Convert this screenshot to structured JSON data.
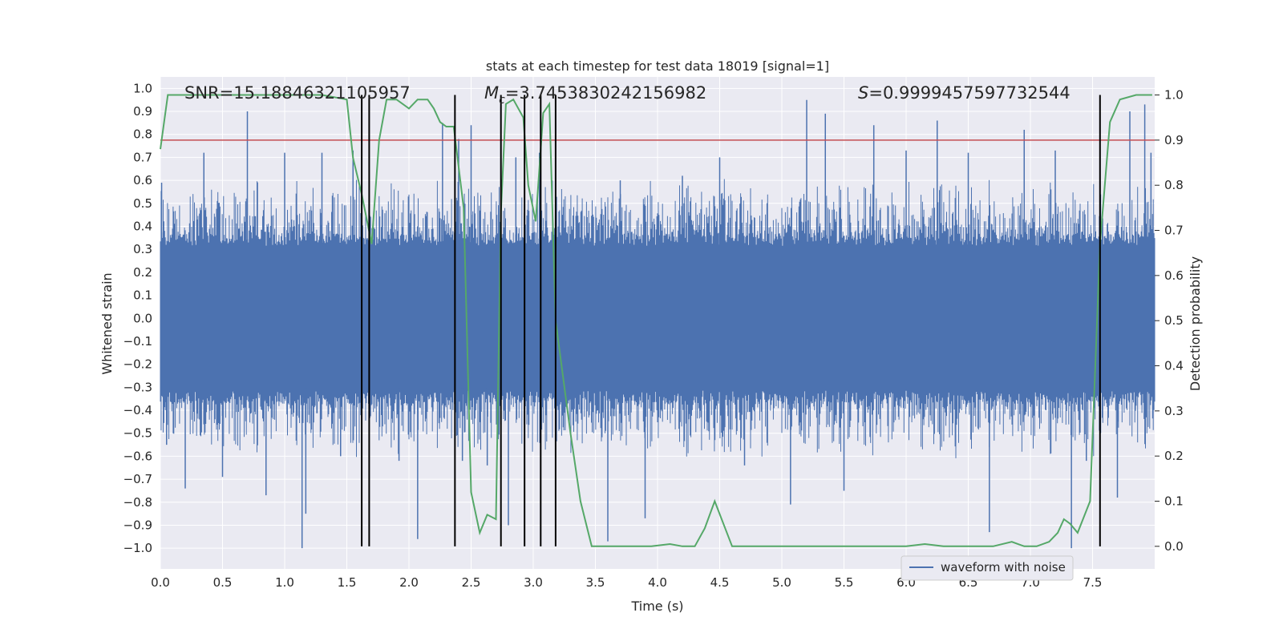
{
  "chart_data": {
    "type": "line",
    "title": "stats at each timestep for test data 18019 [signal=1]",
    "xlabel": "Time (s)",
    "ylabel_left": "Whitened strain",
    "ylabel_right": "Detection probability",
    "xlim": [
      0.0,
      8.0
    ],
    "ylim_left": [
      -1.09,
      1.05
    ],
    "ylim_right": [
      -0.05,
      1.04
    ],
    "x_ticks": [
      "0.0",
      "0.5",
      "1.0",
      "1.5",
      "2.0",
      "2.5",
      "3.0",
      "3.5",
      "4.0",
      "4.5",
      "5.0",
      "5.5",
      "6.0",
      "6.5",
      "7.0",
      "7.5"
    ],
    "y_ticks_left": [
      "1.0",
      "0.9",
      "0.8",
      "0.7",
      "0.6",
      "0.5",
      "0.4",
      "0.3",
      "0.2",
      "0.1",
      "0.0",
      "−0.1",
      "−0.2",
      "−0.3",
      "−0.4",
      "−0.5",
      "−0.6",
      "−0.7",
      "−0.8",
      "−0.9",
      "−1.0"
    ],
    "y_ticks_right": [
      "1.0",
      "0.9",
      "0.8",
      "0.7",
      "0.6",
      "0.5",
      "0.4",
      "0.3",
      "0.2",
      "0.1",
      "0.0"
    ],
    "annotations": {
      "snr": "SNR=15.18846321105957",
      "mc_symbol": "M",
      "mc_sub": "c",
      "mc_value": "=3.7453830242156982",
      "s_symbol": "S",
      "s_value": "=0.9999457597732544"
    },
    "threshold": {
      "value": 0.9,
      "axis": "right",
      "color": "#c44e52"
    },
    "event_lines_x": [
      1.62,
      1.68,
      2.37,
      2.74,
      2.93,
      3.06,
      3.18,
      7.56
    ],
    "series": [
      {
        "name": "waveform with noise",
        "color": "#4c72b0",
        "kind": "noisy strain",
        "core_amplitude": 0.37,
        "spikes": [
          {
            "x": 0.01,
            "y": 0.59
          },
          {
            "x": 0.05,
            "y": -0.55
          },
          {
            "x": 0.2,
            "y": -0.74
          },
          {
            "x": 0.35,
            "y": 0.72
          },
          {
            "x": 0.5,
            "y": -0.69
          },
          {
            "x": 0.7,
            "y": 0.9
          },
          {
            "x": 0.85,
            "y": -0.77
          },
          {
            "x": 1.0,
            "y": 0.72
          },
          {
            "x": 1.14,
            "y": -1.0
          },
          {
            "x": 1.17,
            "y": -0.85
          },
          {
            "x": 1.3,
            "y": 0.72
          },
          {
            "x": 1.45,
            "y": -0.6
          },
          {
            "x": 1.55,
            "y": 0.73
          },
          {
            "x": 1.92,
            "y": -0.62
          },
          {
            "x": 2.07,
            "y": -0.96
          },
          {
            "x": 2.27,
            "y": 0.85
          },
          {
            "x": 2.4,
            "y": 0.78
          },
          {
            "x": 2.43,
            "y": -0.62
          },
          {
            "x": 2.5,
            "y": 0.84
          },
          {
            "x": 2.63,
            "y": -0.64
          },
          {
            "x": 2.74,
            "y": 0.92
          },
          {
            "x": 2.8,
            "y": -0.9
          },
          {
            "x": 2.86,
            "y": 0.7
          },
          {
            "x": 3.05,
            "y": 0.72
          },
          {
            "x": 3.18,
            "y": 0.85
          },
          {
            "x": 3.6,
            "y": -0.97
          },
          {
            "x": 3.7,
            "y": 0.6
          },
          {
            "x": 3.9,
            "y": -0.87
          },
          {
            "x": 4.2,
            "y": 0.62
          },
          {
            "x": 4.5,
            "y": 0.7
          },
          {
            "x": 4.7,
            "y": -0.64
          },
          {
            "x": 5.07,
            "y": -0.81
          },
          {
            "x": 5.2,
            "y": 0.95
          },
          {
            "x": 5.35,
            "y": 0.89
          },
          {
            "x": 5.5,
            "y": -0.75
          },
          {
            "x": 5.74,
            "y": 0.84
          },
          {
            "x": 6.0,
            "y": 0.73
          },
          {
            "x": 6.25,
            "y": 0.86
          },
          {
            "x": 6.5,
            "y": 0.72
          },
          {
            "x": 6.67,
            "y": -0.93
          },
          {
            "x": 6.95,
            "y": 0.82
          },
          {
            "x": 7.2,
            "y": 0.73
          },
          {
            "x": 7.33,
            "y": -1.0
          },
          {
            "x": 7.45,
            "y": -0.62
          },
          {
            "x": 7.7,
            "y": -0.78
          },
          {
            "x": 7.8,
            "y": 0.9
          },
          {
            "x": 7.92,
            "y": 0.93
          },
          {
            "x": 7.97,
            "y": 0.72
          }
        ]
      },
      {
        "name": "detection probability",
        "color": "#55a868",
        "axis": "right",
        "x": [
          0.0,
          0.06,
          0.2,
          0.6,
          1.0,
          1.3,
          1.5,
          1.55,
          1.62,
          1.7,
          1.76,
          1.82,
          1.9,
          2.0,
          2.07,
          2.15,
          2.2,
          2.25,
          2.3,
          2.36,
          2.44,
          2.5,
          2.57,
          2.63,
          2.7,
          2.74,
          2.78,
          2.84,
          2.92,
          2.96,
          3.02,
          3.08,
          3.13,
          3.18,
          3.3,
          3.38,
          3.47,
          3.62,
          3.75,
          3.95,
          4.1,
          4.2,
          4.3,
          4.38,
          4.46,
          4.6,
          4.9,
          5.2,
          5.5,
          6.0,
          6.15,
          6.3,
          6.5,
          6.7,
          6.85,
          6.95,
          7.05,
          7.15,
          7.22,
          7.27,
          7.32,
          7.38,
          7.48,
          7.56,
          7.64,
          7.72,
          7.85,
          7.98
        ],
        "y": [
          0.88,
          1.0,
          1.0,
          1.0,
          1.0,
          1.0,
          0.99,
          0.86,
          0.78,
          0.67,
          0.9,
          0.99,
          0.99,
          0.97,
          0.99,
          0.99,
          0.97,
          0.94,
          0.93,
          0.93,
          0.75,
          0.12,
          0.03,
          0.07,
          0.06,
          0.74,
          0.98,
          0.99,
          0.95,
          0.8,
          0.72,
          0.96,
          0.98,
          0.5,
          0.25,
          0.1,
          0.0,
          0.0,
          0.0,
          0.0,
          0.005,
          0.0,
          0.0,
          0.04,
          0.1,
          0.0,
          0.0,
          0.0,
          0.0,
          0.0,
          0.005,
          0.0,
          0.0,
          0.0,
          0.01,
          0.0,
          0.0,
          0.01,
          0.03,
          0.06,
          0.05,
          0.03,
          0.1,
          0.67,
          0.94,
          0.99,
          1.0,
          1.0
        ]
      }
    ],
    "legend": {
      "position": "lower-right",
      "entries": [
        "waveform with noise"
      ]
    }
  }
}
